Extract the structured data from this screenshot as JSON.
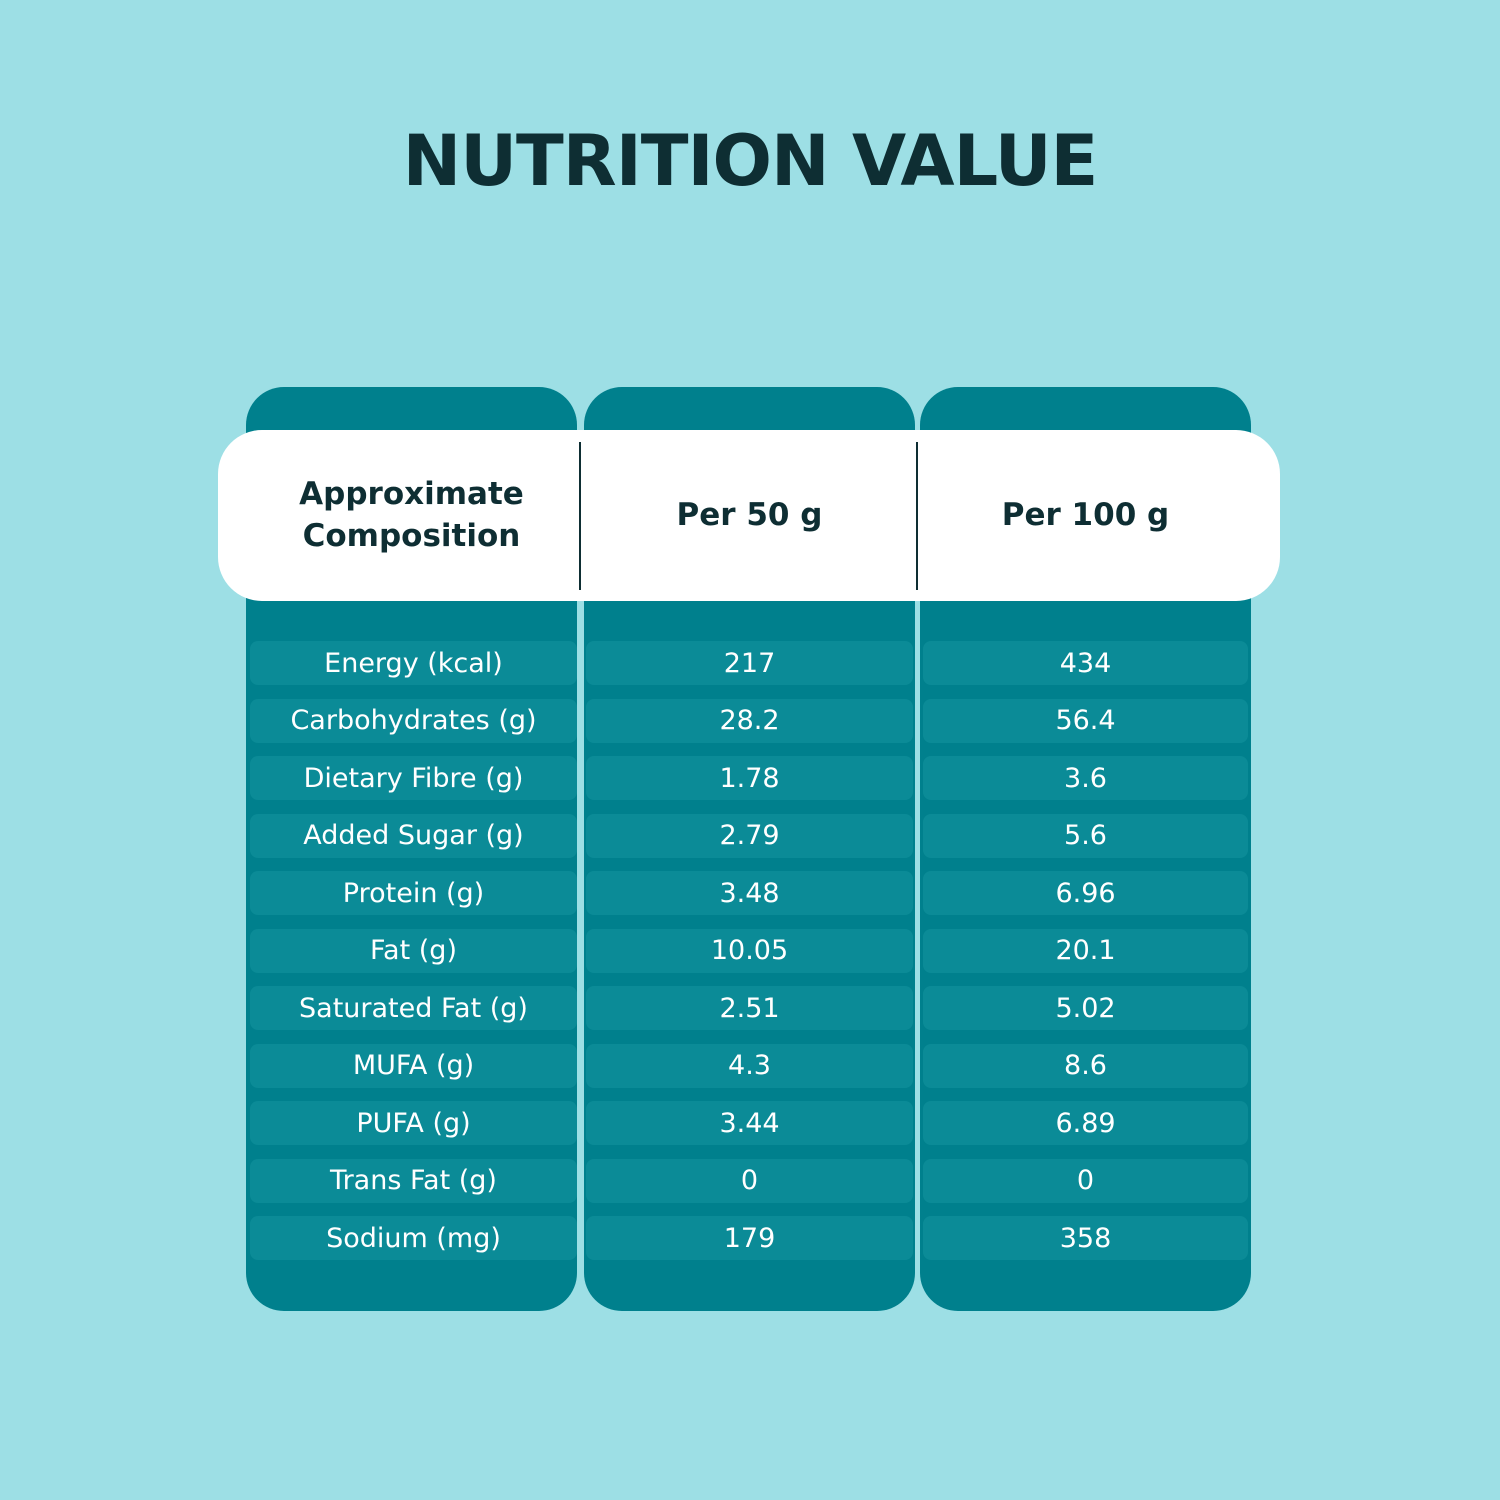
{
  "title": "NUTRITION VALUE",
  "table": {
    "headers": [
      "Approximate Composition",
      "Per 50 g",
      "Per 100 g"
    ],
    "rows": [
      [
        "Energy (kcal)",
        "217",
        "434"
      ],
      [
        "Carbohydrates (g)",
        "28.2",
        "56.4"
      ],
      [
        "Dietary Fibre (g)",
        "1.78",
        "3.6"
      ],
      [
        "Added Sugar (g)",
        "2.79",
        "5.6"
      ],
      [
        "Protein (g)",
        "3.48",
        "6.96"
      ],
      [
        "Fat (g)",
        "10.05",
        "20.1"
      ],
      [
        "Saturated Fat (g)",
        "2.51",
        "5.02"
      ],
      [
        "MUFA (g)",
        "4.3",
        "8.6"
      ],
      [
        "PUFA (g)",
        "3.44",
        "6.89"
      ],
      [
        "Trans Fat (g)",
        "0",
        "0"
      ],
      [
        "Sodium (mg)",
        "179",
        "358"
      ]
    ]
  },
  "colors": {
    "background": "#9ddfe5",
    "column": "#00808d",
    "row": "#0b8b97",
    "header_bg": "#ffffff",
    "header_text": "#0e2e33"
  }
}
